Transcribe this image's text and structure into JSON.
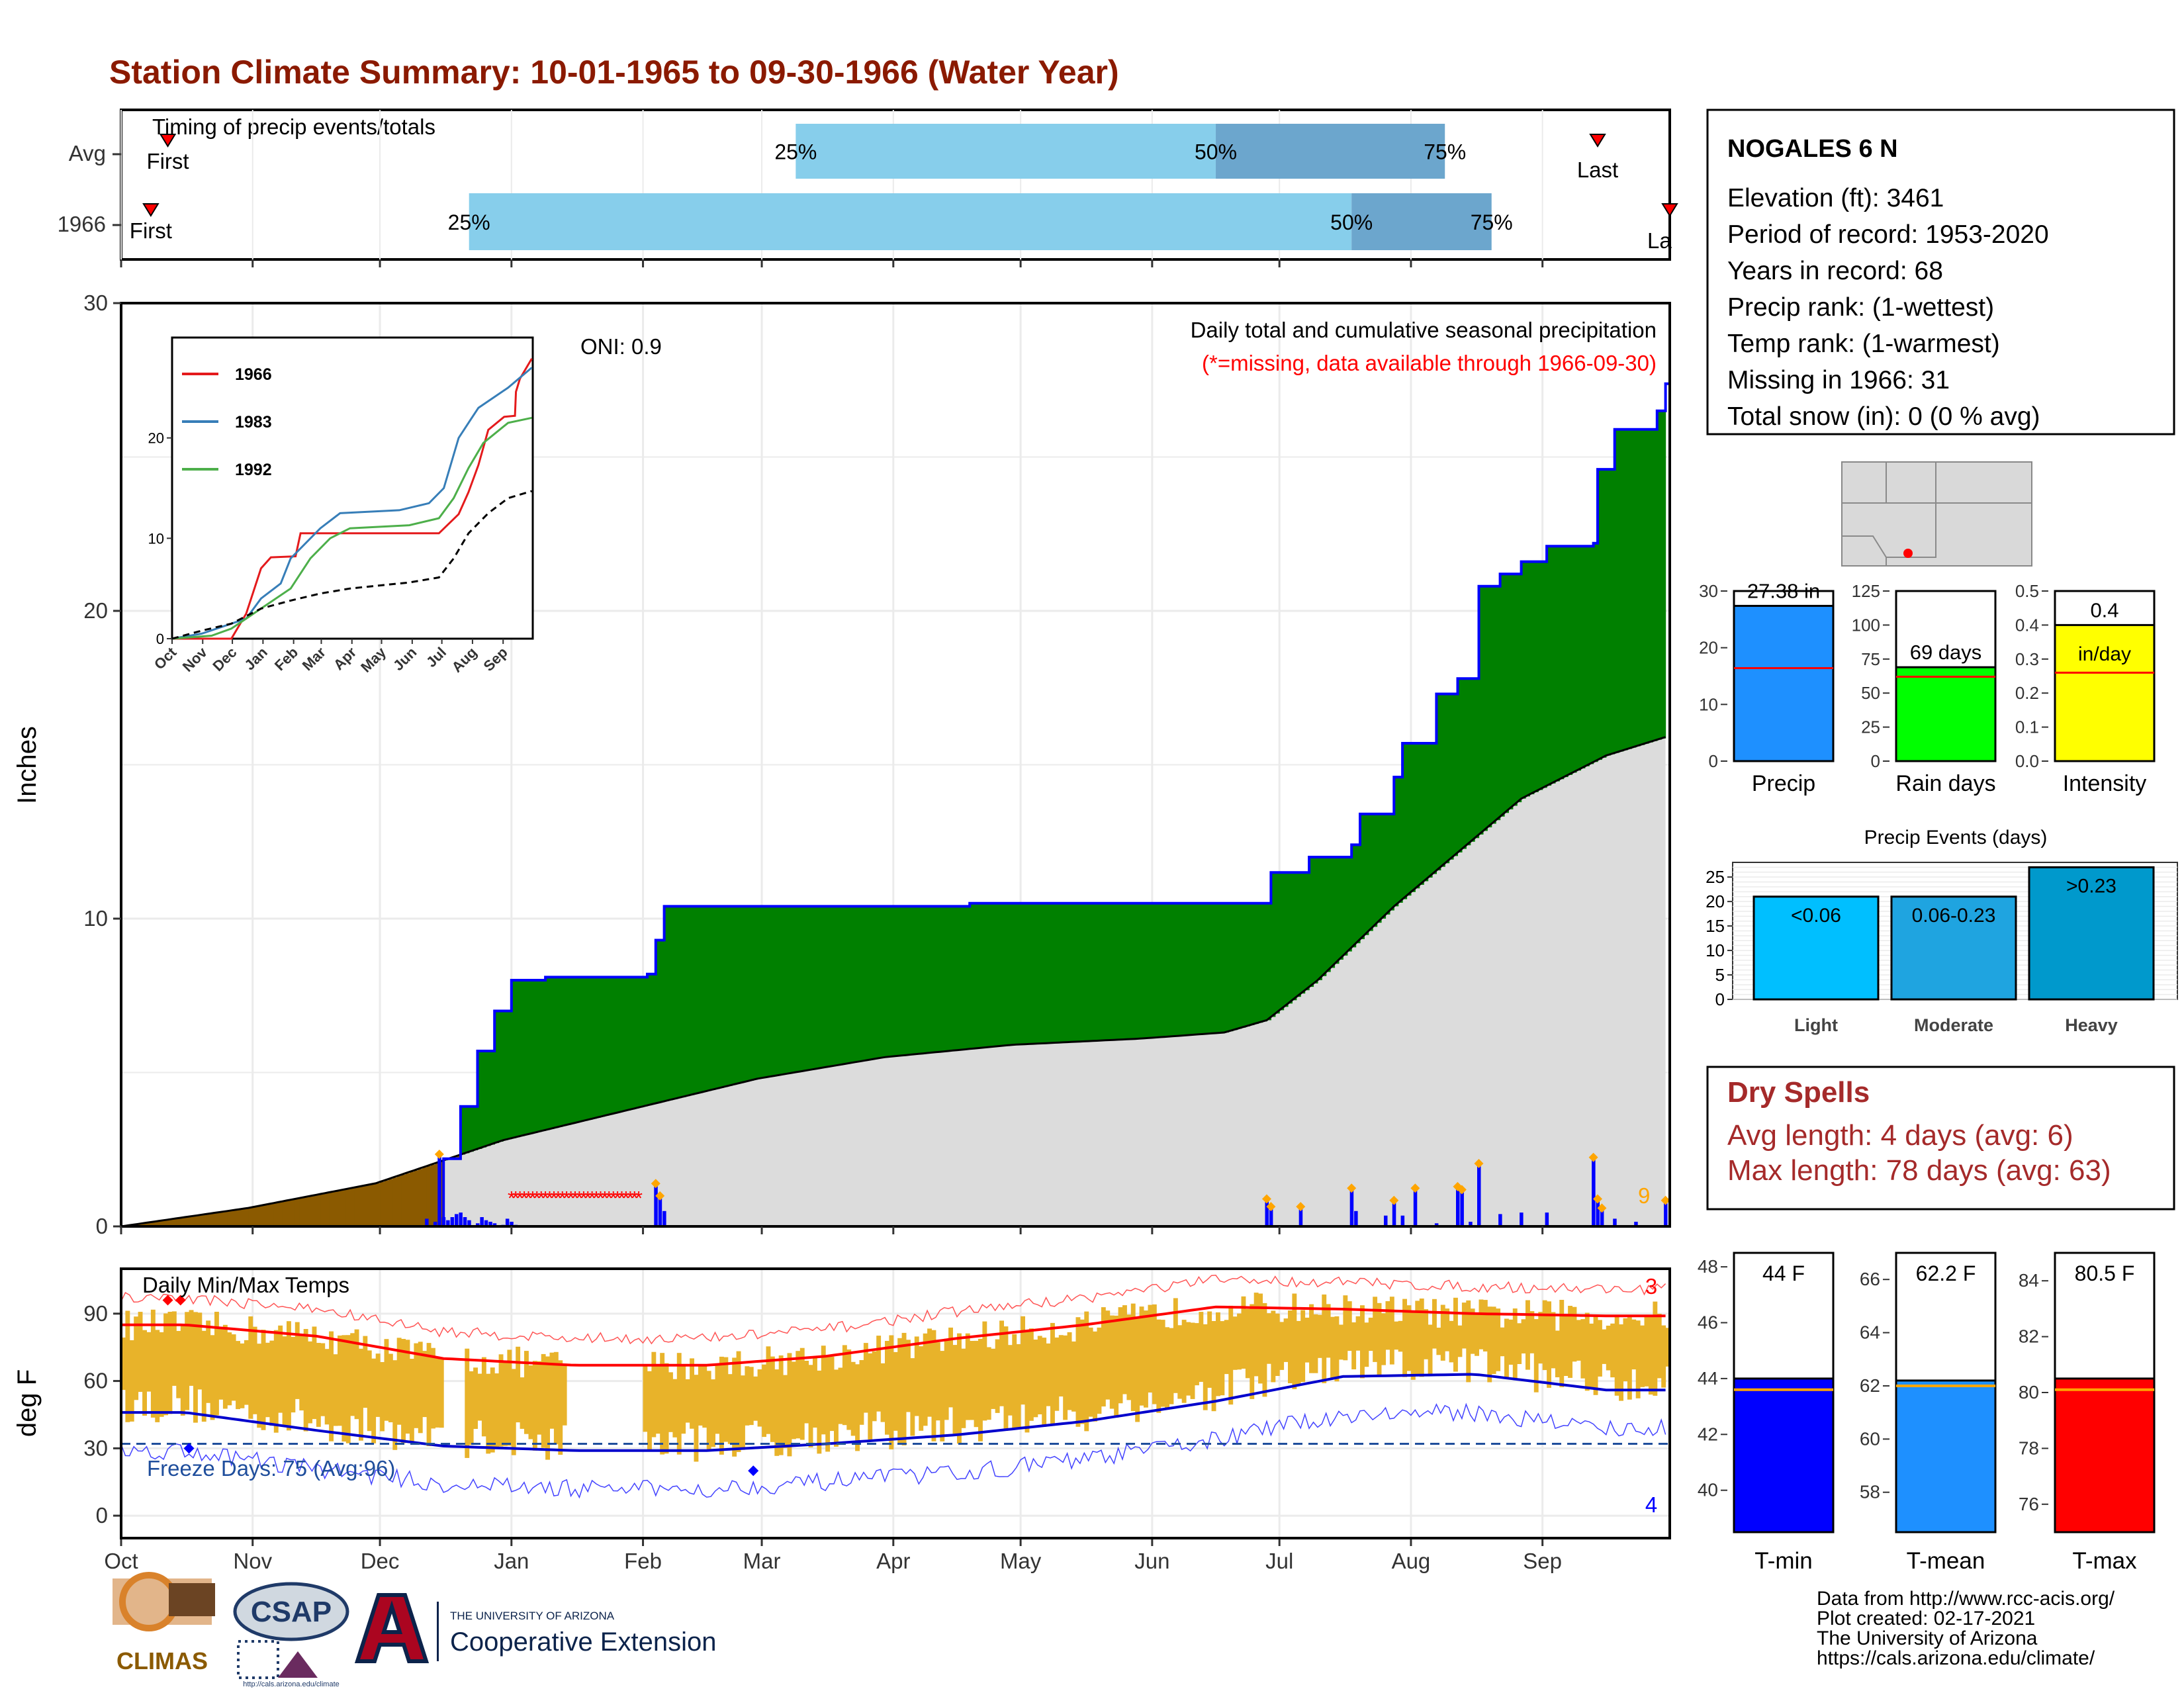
{
  "title": "Station Climate Summary: 10-01-1965 to 09-30-1966 (Water Year)",
  "months": [
    "Oct",
    "Nov",
    "Dec",
    "Jan",
    "Feb",
    "Mar",
    "Apr",
    "May",
    "Jun",
    "Jul",
    "Aug",
    "Sep"
  ],
  "timing": {
    "label": "Timing of precip events/totals",
    "rows": [
      "Avg",
      "1966"
    ],
    "first_label": "First",
    "last_label": "Last",
    "last_label_cut": "La",
    "avg": {
      "first_day": 11,
      "last_day": 348,
      "q25": 159,
      "q50": 258,
      "q75": 312
    },
    "year": {
      "first_day": 7,
      "last_day": 365,
      "q25": 82,
      "q50": 290,
      "q75": 323
    },
    "p25": "25%",
    "p50": "50%",
    "p75": "75%"
  },
  "main": {
    "ylabel": "Inches",
    "yticks": [
      "0",
      "10",
      "20",
      "30"
    ],
    "oni": "ONI: 0.9",
    "legend_title": "Daily total and cumulative seasonal precipitation",
    "missing_note": "(*=missing, data available through 1966-09-30)",
    "big_event_count": "9",
    "colors": {
      "above": "#008000",
      "below": "#8b5a00",
      "normal": "#dcdcdc",
      "line": "#0000ff",
      "daily": "#0000ff",
      "missing": "#ff0000",
      "marker": "#ffa500"
    }
  },
  "inset": {
    "series": [
      "1966",
      "1983",
      "1992"
    ],
    "colors": [
      "#e41a1c",
      "#377eb8",
      "#4daf4a"
    ],
    "yticks": [
      "0",
      "10",
      "20"
    ],
    "months": [
      "Oct",
      "Nov",
      "Dec",
      "Jan",
      "Feb",
      "Mar",
      "Apr",
      "May",
      "Jun",
      "Jul",
      "Aug",
      "Sep"
    ]
  },
  "temps": {
    "title": "Daily Min/Max Temps",
    "ylabel": "deg F",
    "yticks": [
      "0",
      "30",
      "60",
      "90"
    ],
    "freeze": "Freeze Days: 75 (Avg:96)",
    "rec_high_count": "3",
    "rec_low_count": "4"
  },
  "station": {
    "name": "NOGALES 6 N",
    "lines": [
      "Elevation (ft): 3461",
      "Period of record: 1953-2020",
      "Years in record: 68",
      "Precip rank:  (1-wettest)",
      "Temp rank:  (1-warmest)",
      "Missing in 1966: 31",
      "Total snow (in): 0 (0 % avg)"
    ]
  },
  "bars": {
    "precip": {
      "label": "Precip",
      "value": 27.38,
      "value_label": "27.38 in",
      "avg": 16.4,
      "max": 30,
      "ticks": [
        "0",
        "10",
        "20",
        "30"
      ],
      "color": "#1e90ff"
    },
    "raindays": {
      "label": "Rain days",
      "value": 69,
      "value_label": "69 days",
      "avg": 62,
      "max": 125,
      "ticks": [
        "0",
        "25",
        "50",
        "75",
        "100",
        "125"
      ],
      "color": "#00ff00"
    },
    "intensity": {
      "label": "Intensity",
      "value": 0.4,
      "value_label": "0.4",
      "unit_label": "in/day",
      "avg": 0.26,
      "max": 0.5,
      "ticks": [
        "0.0",
        "0.1",
        "0.2",
        "0.3",
        "0.4",
        "0.5"
      ],
      "color": "#ffff00"
    }
  },
  "events": {
    "title": "Precip Events (days)",
    "categories": [
      "Light",
      "Moderate",
      "Heavy"
    ],
    "labels": [
      "<0.06",
      "0.06-0.23",
      ">0.23"
    ],
    "values": [
      21,
      21,
      27
    ],
    "ticks": [
      "0",
      "5",
      "10",
      "15",
      "20",
      "25"
    ],
    "colors": [
      "#00bfff",
      "#1fa4e0",
      "#0099cc"
    ]
  },
  "dry": {
    "title": "Dry Spells",
    "avg": "Avg length: 4 days (avg: 6)",
    "max": "Max length: 78 days (avg: 63)"
  },
  "tbars": {
    "tmin": {
      "label": "T-min",
      "value_label": "44 F",
      "value": 44,
      "avg": 43.6,
      "min": 38.5,
      "max": 48.5,
      "ticks": [
        "40",
        "42",
        "44",
        "46",
        "48"
      ],
      "color": "#0000ff"
    },
    "tmean": {
      "label": "T-mean",
      "value_label": "62.2 F",
      "value": 62.2,
      "avg": 62,
      "min": 56.5,
      "max": 67,
      "ticks": [
        "58",
        "60",
        "62",
        "64",
        "66"
      ],
      "color": "#1e90ff"
    },
    "tmax": {
      "label": "T-max",
      "value_label": "80.5 F",
      "value": 80.5,
      "avg": 80.1,
      "min": 75,
      "max": 85,
      "ticks": [
        "76",
        "78",
        "80",
        "82",
        "84"
      ],
      "color": "#ff0000"
    }
  },
  "footer": {
    "lines": [
      "Data from http://www.rcc-acis.org/",
      "Plot created: 02-17-2021",
      "The University of Arizona",
      "https://cals.arizona.edu/climate/"
    ]
  },
  "logos": {
    "climas": "CLIMAS",
    "csap": "CSAP",
    "csap_url": "http://cals.arizona.edu/climate",
    "ua_line1": "THE UNIVERSITY OF ARIZONA",
    "ua_line2": "Cooperative Extension"
  },
  "chart_data": {
    "type": "area",
    "title": "Station Climate Summary: 10-01-1965 to 09-30-1966 (Water Year)",
    "ylabel": "Inches",
    "ylim": [
      0,
      30
    ],
    "grid": true,
    "cumulative_1966": [
      [
        0,
        0
      ],
      [
        75,
        0
      ],
      [
        76,
        2.2
      ],
      [
        80,
        3.9
      ],
      [
        84,
        5.7
      ],
      [
        88,
        7.0
      ],
      [
        92,
        8.0
      ],
      [
        100,
        8.1
      ],
      [
        124,
        8.2
      ],
      [
        126,
        9.3
      ],
      [
        128,
        10.4
      ],
      [
        200,
        10.5
      ],
      [
        270,
        10.5
      ],
      [
        271,
        11.5
      ],
      [
        280,
        12.0
      ],
      [
        290,
        12.4
      ],
      [
        292,
        13.4
      ],
      [
        300,
        14.6
      ],
      [
        302,
        15.7
      ],
      [
        310,
        17.3
      ],
      [
        315,
        17.8
      ],
      [
        320,
        20.8
      ],
      [
        325,
        21.2
      ],
      [
        330,
        21.6
      ],
      [
        336,
        22.1
      ],
      [
        347,
        22.2
      ],
      [
        348,
        24.6
      ],
      [
        352,
        25.9
      ],
      [
        362,
        26.5
      ],
      [
        364,
        27.38
      ]
    ],
    "avg_cumulative": [
      [
        0,
        0
      ],
      [
        30,
        0.6
      ],
      [
        60,
        1.4
      ],
      [
        75,
        2.1
      ],
      [
        90,
        2.8
      ],
      [
        120,
        3.8
      ],
      [
        150,
        4.8
      ],
      [
        180,
        5.5
      ],
      [
        210,
        5.9
      ],
      [
        240,
        6.1
      ],
      [
        260,
        6.3
      ],
      [
        270,
        6.7
      ],
      [
        282,
        8.0
      ],
      [
        300,
        10.4
      ],
      [
        330,
        13.9
      ],
      [
        350,
        15.3
      ],
      [
        364,
        15.9
      ]
    ],
    "daily_precip": [
      [
        72,
        0.25
      ],
      [
        74,
        0.15
      ],
      [
        75,
        2.3
      ],
      [
        76,
        0.3
      ],
      [
        77,
        0.2
      ],
      [
        78,
        0.3
      ],
      [
        79,
        0.4
      ],
      [
        80,
        0.45
      ],
      [
        81,
        0.3
      ],
      [
        82,
        0.2
      ],
      [
        84,
        0.1
      ],
      [
        85,
        0.3
      ],
      [
        86,
        0.2
      ],
      [
        87,
        0.15
      ],
      [
        88,
        0.1
      ],
      [
        90,
        0.05
      ],
      [
        91,
        0.25
      ],
      [
        92,
        0.15
      ],
      [
        93,
        0.05
      ],
      [
        126,
        1.35
      ],
      [
        127,
        0.95
      ],
      [
        128,
        0.5
      ],
      [
        270,
        0.85
      ],
      [
        271,
        0.6
      ],
      [
        278,
        0.6
      ],
      [
        290,
        1.2
      ],
      [
        291,
        0.5
      ],
      [
        298,
        0.35
      ],
      [
        300,
        0.8
      ],
      [
        302,
        0.35
      ],
      [
        305,
        1.2
      ],
      [
        310,
        0.1
      ],
      [
        315,
        1.25
      ],
      [
        316,
        1.15
      ],
      [
        318,
        0.15
      ],
      [
        320,
        2.0
      ],
      [
        325,
        0.4
      ],
      [
        330,
        0.45
      ],
      [
        336,
        0.45
      ],
      [
        347,
        2.2
      ],
      [
        348,
        0.85
      ],
      [
        349,
        0.55
      ],
      [
        352,
        0.25
      ],
      [
        357,
        0.15
      ],
      [
        364,
        0.8
      ]
    ],
    "missing_days_range": [
      92,
      122
    ],
    "units_x": "day of water year (0 = Oct 1)",
    "temperature": {
      "ylim": [
        -10,
        110
      ],
      "avg_max_monthly": [
        85,
        80,
        70,
        67,
        67,
        71,
        79,
        85,
        93,
        92,
        90,
        89
      ],
      "avg_min_monthly": [
        46,
        38,
        31,
        29,
        29,
        32,
        36,
        42,
        51,
        62,
        63,
        56
      ],
      "freeze_line": 32
    }
  }
}
